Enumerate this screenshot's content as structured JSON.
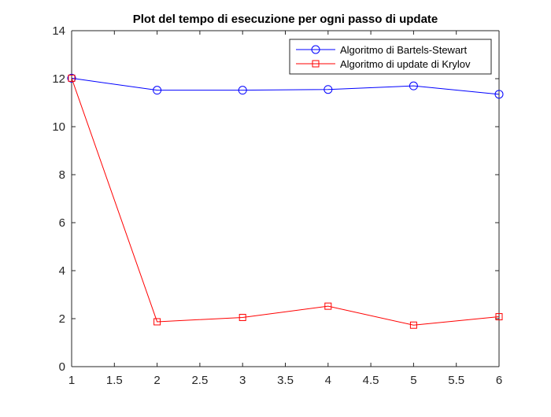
{
  "chart_data": {
    "type": "line",
    "title": "Plot del tempo di esecuzione per ogni passo di update",
    "xlabel": "",
    "ylabel": "",
    "xlim": [
      1,
      6
    ],
    "ylim": [
      0,
      14
    ],
    "x_ticks": [
      "1",
      "1.5",
      "2",
      "2.5",
      "3",
      "3.5",
      "4",
      "4.5",
      "5",
      "5.5",
      "6"
    ],
    "y_ticks": [
      "0",
      "2",
      "4",
      "6",
      "8",
      "10",
      "12",
      "14"
    ],
    "x_tick_values": [
      1,
      1.5,
      2,
      2.5,
      3,
      3.5,
      4,
      4.5,
      5,
      5.5,
      6
    ],
    "y_tick_values": [
      0,
      2,
      4,
      6,
      8,
      10,
      12,
      14
    ],
    "grid": false,
    "legend_position": "top-right",
    "x": [
      1,
      2,
      3,
      4,
      5,
      6
    ],
    "series": [
      {
        "name": "Algoritmo di Bartels-Stewart",
        "color": "#0000ff",
        "marker": "circle",
        "values": [
          12.02,
          11.52,
          11.52,
          11.55,
          11.7,
          11.35
        ]
      },
      {
        "name": "Algoritmo di update di Krylov",
        "color": "#ff0000",
        "marker": "square",
        "values": [
          12.02,
          1.87,
          2.05,
          2.52,
          1.73,
          2.08
        ]
      }
    ]
  }
}
